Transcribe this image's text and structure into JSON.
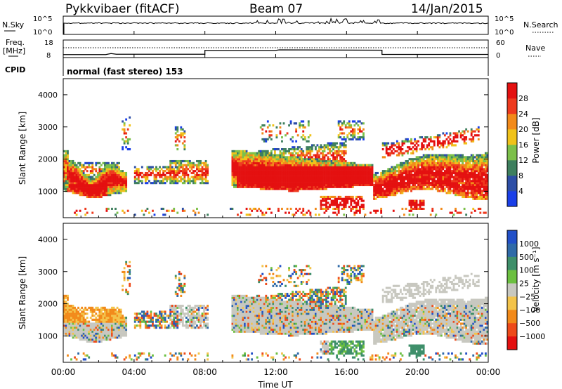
{
  "header": {
    "radar": "Pykkvibaer (fitACF)",
    "beam": "Beam 07",
    "date": "14/Jan/2015"
  },
  "noise_panel": {
    "left_label": "N.Sky",
    "right_label": "N.Search",
    "tick_top": "10^5",
    "tick_bottom": "10^0"
  },
  "freq_panel": {
    "left_label_1": "Freq.",
    "left_label_2": "[MHz]",
    "right_label": "Nave",
    "left_tick_top": "18",
    "left_tick_bottom": "8",
    "right_tick_top": "60",
    "right_tick_bottom": "0"
  },
  "cpid_panel": {
    "label": "CPID",
    "value": "normal (fast stereo) 153"
  },
  "chart_data": [
    {
      "type": "heatmap",
      "parameter": "Power",
      "ylabel": "Slant Range [km]",
      "ylim": [
        180,
        4500
      ],
      "yticks": [
        1000,
        2000,
        3000,
        4000
      ],
      "xlim": [
        0,
        24
      ],
      "colorbar": {
        "label": "Power [dB]",
        "ticks": [
          4,
          8,
          12,
          16,
          20,
          24,
          28
        ],
        "range": [
          0,
          32
        ],
        "colors": [
          "#1a3fe8",
          "#2d4ea6",
          "#3e7f5e",
          "#7cc04a",
          "#f0c21a",
          "#f28a1a",
          "#ee3a1e",
          "#e41010"
        ]
      }
    },
    {
      "type": "heatmap",
      "parameter": "Velocity",
      "ylabel": "Slant Range [km]",
      "ylim": [
        180,
        4500
      ],
      "yticks": [
        1000,
        2000,
        3000,
        4000
      ],
      "xlim": [
        0,
        24
      ],
      "colorbar": {
        "label": "Velocity [m s⁻¹]",
        "ticks": [
          "1000",
          "500",
          "100",
          "25",
          "−25",
          "−100",
          "−500",
          "−1000"
        ],
        "colors": [
          "#2250c8",
          "#2f6aa8",
          "#3e8f6a",
          "#6cc040",
          "#c8c8c0",
          "#f3c34a",
          "#f28a1a",
          "#ee4a1a",
          "#e41010"
        ]
      }
    }
  ],
  "x_axis": {
    "label": "Time UT",
    "ticks": [
      "00:00",
      "04:00",
      "08:00",
      "12:00",
      "16:00",
      "20:00",
      "00:00"
    ]
  },
  "colors": {
    "line": "#000000",
    "ground_grey": "#c8c8c0"
  }
}
